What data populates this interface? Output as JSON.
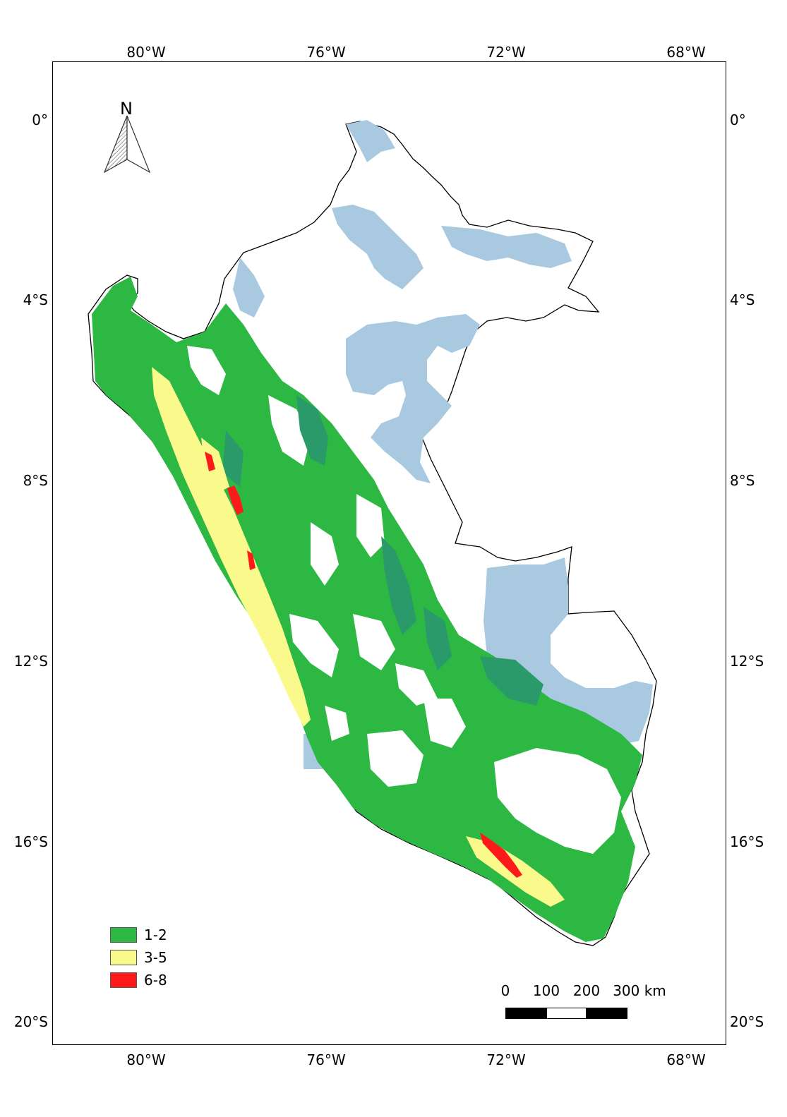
{
  "map": {
    "longitude_ticks": [
      "80°W",
      "76°W",
      "72°W",
      "68°W"
    ],
    "latitude_ticks": [
      "0°",
      "4°S",
      "8°S",
      "12°S",
      "16°S",
      "20°S"
    ],
    "north_label": "N",
    "legend": [
      {
        "label": "1-2",
        "color": "#2db843"
      },
      {
        "label": "3-5",
        "color": "#fafa8c"
      },
      {
        "label": "6-8",
        "color": "#ff1a1a"
      }
    ],
    "scale": {
      "labels": [
        "0",
        "100",
        "200",
        "300 km"
      ]
    },
    "colors": {
      "water_zones": "#a8c9e0",
      "dark_green": "#2a9a6a",
      "outline": "#000000"
    }
  }
}
